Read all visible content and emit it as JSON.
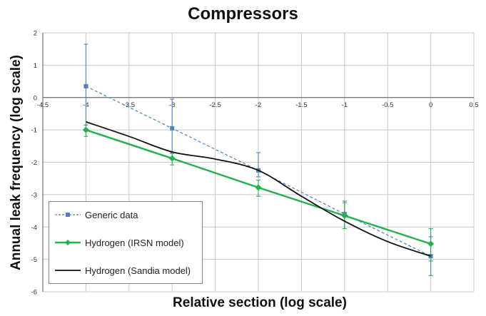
{
  "chart_data": {
    "type": "line",
    "title": "Compressors",
    "xlabel": "Relative section (log scale)",
    "ylabel": "Annual leak frequency (log scale)",
    "xlim": [
      -4.5,
      0.5
    ],
    "ylim": [
      -6,
      2
    ],
    "x_ticks": [
      "-4.5",
      "-4",
      "-3.5",
      "-3",
      "-2.5",
      "-2",
      "-1.5",
      "-1",
      "-0.5",
      "0",
      "0.5"
    ],
    "y_ticks": [
      "2",
      "1",
      "0",
      "-1",
      "-2",
      "-3",
      "-4",
      "-5",
      "-6"
    ],
    "grid": true,
    "legend_position": "bottom-left",
    "series": [
      {
        "name": "Generic data",
        "color": "#4f81bd",
        "style": "dashed",
        "marker": "square",
        "x": [
          -4,
          -3,
          -2,
          -1,
          0
        ],
        "y": [
          0.35,
          -0.95,
          -2.25,
          -3.6,
          -4.9
        ],
        "error_low": [
          -1.0,
          -1.7,
          -2.45,
          -4.05,
          -5.5
        ],
        "error_high": [
          1.65,
          -0.05,
          -1.7,
          -3.2,
          -4.3
        ]
      },
      {
        "name": "Hydrogen (IRSN model)",
        "color": "#22b14c",
        "style": "solid",
        "marker": "diamond",
        "x": [
          -4,
          -3,
          -2,
          -1,
          0
        ],
        "y": [
          -1.0,
          -1.88,
          -2.78,
          -3.65,
          -4.52
        ],
        "error_low": [
          -1.2,
          -2.08,
          -3.05,
          -4.05,
          -5.05
        ],
        "error_high": [
          -0.85,
          -1.73,
          -2.55,
          -3.25,
          -4.05
        ]
      },
      {
        "name": "Hydrogen (Sandia model)",
        "color": "#111111",
        "style": "solid",
        "marker": "none",
        "x": [
          -4,
          -3.5,
          -3,
          -2.5,
          -2,
          -1.5,
          -1,
          -0.5,
          0
        ],
        "y": [
          -0.75,
          -1.2,
          -1.68,
          -1.9,
          -2.25,
          -3.05,
          -3.82,
          -4.45,
          -4.9
        ]
      }
    ]
  }
}
